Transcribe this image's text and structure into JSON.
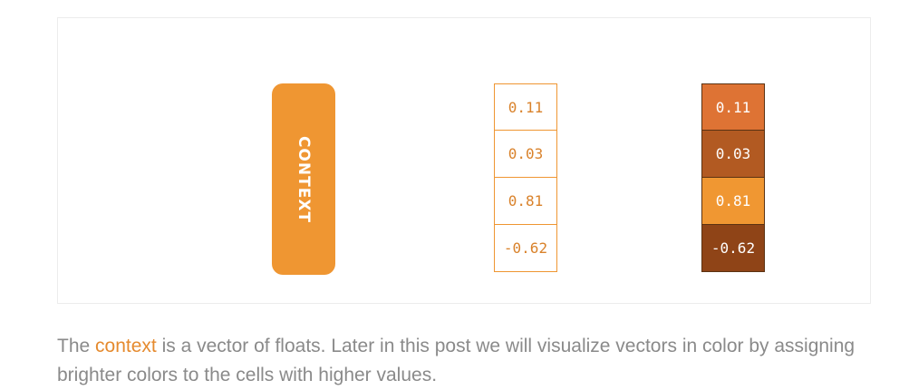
{
  "diagram": {
    "context_label": "CONTEXT",
    "vector_values": [
      "0.11",
      "0.03",
      "0.81",
      "-0.62"
    ],
    "colored_cells": [
      {
        "value": "0.11",
        "color": "#de7334"
      },
      {
        "value": "0.03",
        "color": "#b25a22"
      },
      {
        "value": "0.81",
        "color": "#f09732"
      },
      {
        "value": "-0.62",
        "color": "#8f4417"
      }
    ],
    "colors": {
      "accent": "#ef9632",
      "caption_text": "#8a8a8a",
      "caption_highlight": "#e58a2e"
    }
  },
  "caption": {
    "prefix": "The ",
    "highlight": "context",
    "suffix": " is a vector of floats. Later in this post we will visualize vectors in color by assigning brighter colors to the cells with higher values."
  }
}
